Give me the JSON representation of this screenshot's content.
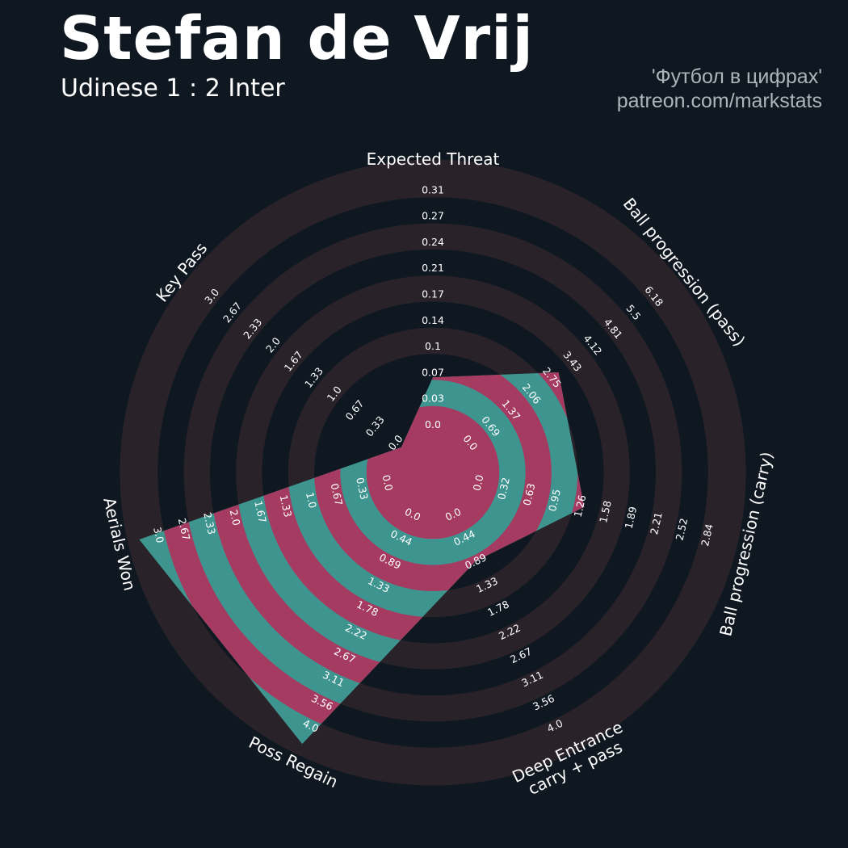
{
  "header": {
    "player": "Stefan de Vrij",
    "match": "Udinese 1 : 2 Inter",
    "credit_line1": "'Футбол в цифрах'",
    "credit_line2": "patreon.com/markstats"
  },
  "colors": {
    "background": "#0f1821",
    "ring_band": "#292329",
    "player_fill_a": "#3e9590",
    "player_fill_b": "#a53b60",
    "text": "#ffffff",
    "credit": "#aeb4ba"
  },
  "chart_data": {
    "type": "radar",
    "params": [
      {
        "label": "Expected Threat",
        "value": 0.065,
        "ticks": [
          "0.0",
          "0.03",
          "0.07",
          "0.1",
          "0.14",
          "0.17",
          "0.21",
          "0.24",
          "0.27",
          "0.31"
        ]
      },
      {
        "label": "Ball progression (pass)",
        "value": 2.85,
        "ticks": [
          "0.0",
          "0.69",
          "1.37",
          "2.06",
          "2.75",
          "3.43",
          "4.12",
          "4.81",
          "5.5",
          "6.18"
        ]
      },
      {
        "label": "Ball progression (carry)",
        "value": 1.25,
        "ticks": [
          "0.0",
          "0.32",
          "0.63",
          "0.95",
          "1.26",
          "1.58",
          "1.89",
          "2.21",
          "2.52",
          "2.84"
        ]
      },
      {
        "label": "Deep Entrance\ncarry + pass",
        "value": 0.89,
        "ticks": [
          "0.0",
          "0.44",
          "0.89",
          "1.33",
          "1.78",
          "2.22",
          "2.67",
          "3.11",
          "3.56",
          "4.0"
        ]
      },
      {
        "label": "Poss Regain",
        "value": 4.0,
        "ticks": [
          "0.0",
          "0.44",
          "0.89",
          "1.33",
          "1.78",
          "2.22",
          "2.67",
          "3.11",
          "3.56",
          "4.0"
        ]
      },
      {
        "label": "Aerials Won",
        "value": 3.0,
        "ticks": [
          "0.0",
          "0.33",
          "0.67",
          "1.0",
          "1.33",
          "1.67",
          "2.0",
          "2.33",
          "2.67",
          "3.0"
        ]
      },
      {
        "label": "Key Pass",
        "value": 0.0,
        "ticks": [
          "0.0",
          "0.33",
          "0.67",
          "1.0",
          "1.33",
          "1.67",
          "2.0",
          "2.33",
          "2.67",
          "3.0"
        ]
      }
    ],
    "series": [
      {
        "values": [
          0.065,
          2.85,
          1.25,
          0.89,
          4.0,
          3.0,
          0.0
        ]
      }
    ]
  }
}
